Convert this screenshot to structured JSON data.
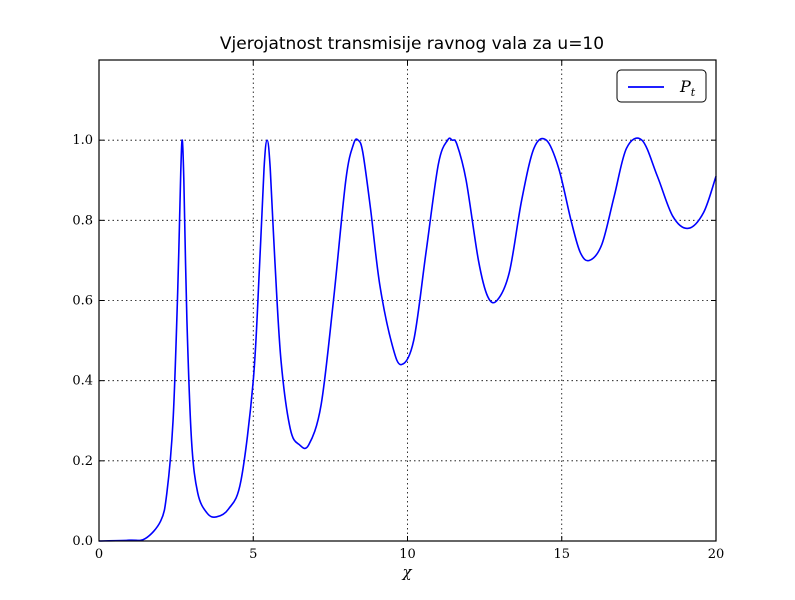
{
  "chart_data": {
    "type": "line",
    "title": "Vjerojatnost transmisije ravnog vala za u=10",
    "xlabel": "χ",
    "ylabel": "",
    "xlim": [
      0,
      20
    ],
    "ylim": [
      0,
      1.2
    ],
    "x_ticks": [
      "0",
      "5",
      "10",
      "15",
      "20"
    ],
    "y_ticks": [
      "0.0",
      "0.2",
      "0.4",
      "0.6",
      "0.8",
      "1.0"
    ],
    "grid": true,
    "legend": {
      "position": "top-right",
      "entries": [
        {
          "name": "P",
          "subscript": "t",
          "color": "#0000ff"
        }
      ]
    },
    "series": [
      {
        "name": "P_t",
        "color": "#0000ff",
        "x": [
          0,
          1.0,
          1.5,
          2.0,
          2.2,
          2.4,
          2.55,
          2.65,
          2.7,
          2.75,
          2.85,
          3.0,
          3.2,
          3.5,
          3.8,
          4.2,
          4.6,
          5.0,
          5.2,
          5.35,
          5.45,
          5.55,
          5.7,
          5.9,
          6.2,
          6.5,
          6.8,
          7.2,
          7.6,
          8.0,
          8.25,
          8.4,
          8.55,
          8.8,
          9.1,
          9.5,
          9.8,
          10.2,
          10.6,
          11.0,
          11.3,
          11.45,
          11.6,
          11.9,
          12.3,
          12.6,
          12.9,
          13.3,
          13.7,
          14.1,
          14.5,
          14.9,
          15.3,
          15.6,
          15.9,
          16.3,
          16.7,
          17.1,
          17.6,
          18.1,
          18.6,
          19.1,
          19.6,
          20.0
        ],
        "y": [
          0.0,
          0.002,
          0.006,
          0.05,
          0.12,
          0.3,
          0.62,
          0.92,
          1.0,
          0.9,
          0.55,
          0.25,
          0.12,
          0.07,
          0.06,
          0.08,
          0.15,
          0.4,
          0.68,
          0.93,
          1.0,
          0.93,
          0.7,
          0.45,
          0.28,
          0.24,
          0.24,
          0.34,
          0.6,
          0.9,
          0.99,
          1.0,
          0.97,
          0.83,
          0.64,
          0.49,
          0.44,
          0.5,
          0.72,
          0.94,
          1.0,
          1.0,
          0.99,
          0.9,
          0.7,
          0.61,
          0.6,
          0.67,
          0.85,
          0.98,
          1.0,
          0.93,
          0.8,
          0.72,
          0.7,
          0.74,
          0.86,
          0.98,
          1.0,
          0.91,
          0.81,
          0.78,
          0.82,
          0.91
        ]
      }
    ]
  }
}
